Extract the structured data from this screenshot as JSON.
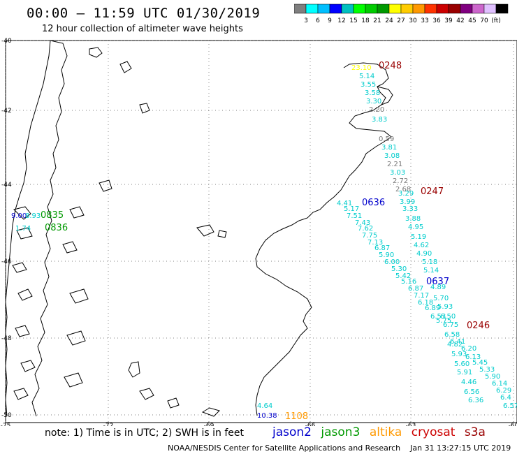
{
  "title": "00:00 – 11:59 UTC 01/30/2019",
  "subtitle": "12 hour collection of altimeter wave heights",
  "legend": {
    "colors": [
      "#7f7f7f",
      "#00ffff",
      "#00bfff",
      "#0000ff",
      "#00c0c0",
      "#00ff00",
      "#00cc00",
      "#009900",
      "#ffff00",
      "#ffcc00",
      "#ff9900",
      "#ff3300",
      "#cc0000",
      "#990000",
      "#800080",
      "#cc66cc",
      "#e0c0ff",
      "#000000"
    ],
    "labels": [
      "3",
      "6",
      "9",
      "12",
      "15",
      "18",
      "21",
      "24",
      "27",
      "30",
      "33",
      "36",
      "39",
      "42",
      "45",
      "70",
      "(ft)"
    ]
  },
  "axes": {
    "lat_labels": [
      "-40",
      "-42",
      "-44",
      "-46",
      "-48",
      "-50"
    ],
    "lon_labels": [
      "-75",
      "-72",
      "-69",
      "-66",
      "-63",
      "-60"
    ]
  },
  "passes": [
    {
      "label": "0248",
      "sat": "cryosat"
    },
    {
      "label": "0247",
      "sat": "cryosat"
    },
    {
      "label": "0246",
      "sat": "cryosat"
    },
    {
      "label": "0636",
      "sat": "jason2"
    },
    {
      "label": "0637",
      "sat": "jason2"
    },
    {
      "label": "0836",
      "sat": "jason3"
    },
    {
      "label": "0835",
      "sat": "jason3"
    },
    {
      "label": "1108",
      "sat": "altika"
    }
  ],
  "wave_heights": {
    "cryosat_track": [
      "23.10",
      "5.14",
      "3.55",
      "3.58",
      "3.30",
      "2.20",
      "3.83",
      "0.59",
      "3.81",
      "3.08",
      "2.21",
      "3.03",
      "2.72",
      "2.68",
      "3.29",
      "3.99",
      "3.33",
      "3.88",
      "4.95",
      "5.19",
      "4.62",
      "4.90",
      "5.18",
      "5.14",
      "4.89",
      "5.70",
      "5.93",
      "6.50",
      "6.75",
      "6.41",
      "6.20",
      "6.13",
      "5.45",
      "5.33",
      "5.90",
      "6.14",
      "6.29",
      "6.4",
      "6.57"
    ],
    "jason2_track": [
      "4.41",
      "5.17",
      "7.51",
      "7.43",
      "7.62",
      "7.75",
      "7.13",
      "6.87",
      "5.90",
      "6.00",
      "5.30",
      "5.42",
      "5.16",
      "6.87",
      "7.17",
      "6.18",
      "6.89",
      "6.53",
      "5.75",
      "6.58",
      "4.82",
      "5.93",
      "5.60",
      "5.91",
      "4.46",
      "6.56",
      "6.36"
    ],
    "west_values": [
      "9.00",
      "8.93",
      "1.74"
    ],
    "bottom_values": [
      "4.64",
      "10.38"
    ]
  },
  "note": "note: 1) Time is in UTC; 2) SWH is in feet",
  "satellites": [
    {
      "name": "jason2",
      "color": "#0000cc"
    },
    {
      "name": "jason3",
      "color": "#009900"
    },
    {
      "name": "altika",
      "color": "#ff9900"
    },
    {
      "name": "cryosat",
      "color": "#cc0000"
    },
    {
      "name": "s3a",
      "color": "#990000"
    }
  ],
  "credit": "NOAA/NESDIS Center for Satellite Applications and Research",
  "timestamp": "Jan 31 13:27:15 UTC 2019"
}
